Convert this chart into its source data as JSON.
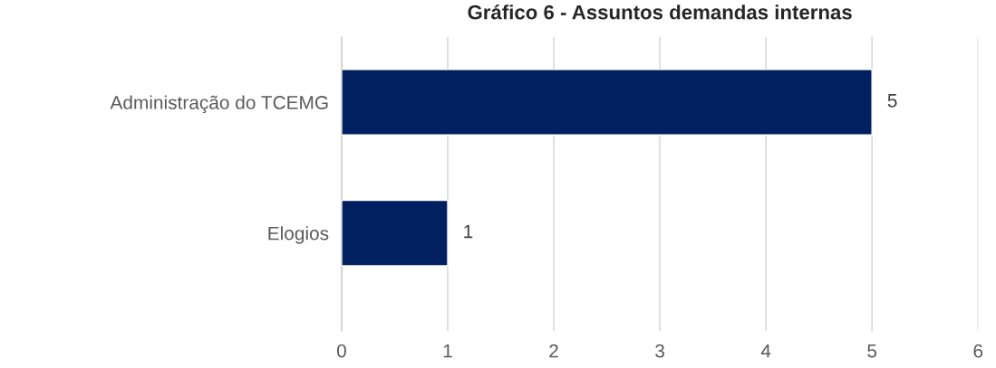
{
  "chart_data": {
    "type": "bar",
    "orientation": "horizontal",
    "title": "Gráfico 6 - Assuntos demandas internas",
    "categories": [
      "Administração do TCEMG",
      "Elogios"
    ],
    "values": [
      5,
      1
    ],
    "color": "#002060",
    "xlim": [
      0,
      6
    ],
    "xticks": [
      0,
      1,
      2,
      3,
      4,
      5,
      6
    ],
    "grid": "x",
    "data_labels": true
  }
}
